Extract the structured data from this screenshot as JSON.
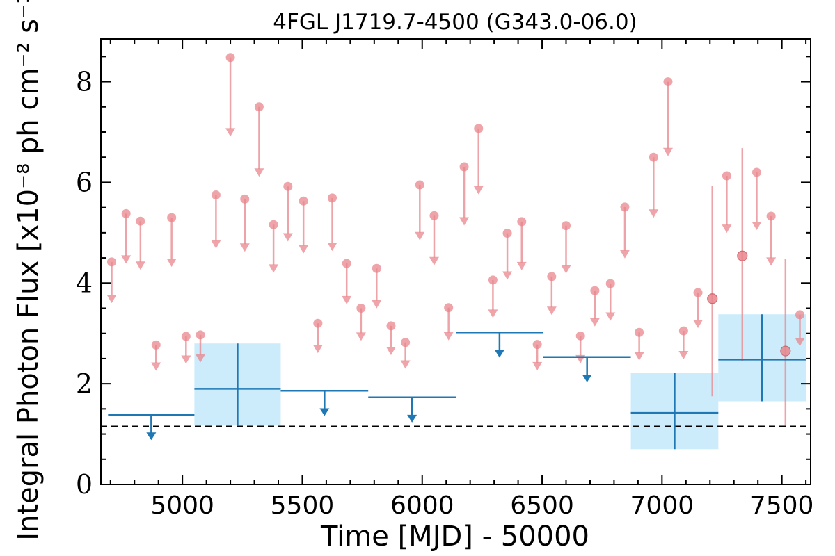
{
  "chart_data": {
    "type": "scatter",
    "title": "4FGL J1719.7-4500 (G343.0-06.0)",
    "xlabel": "Time [MJD] - 50000",
    "ylabel": "Integral Photon Flux [x10⁻⁸ ph cm⁻² s⁻¹]",
    "xlim": [
      4660,
      7620
    ],
    "ylim": [
      0,
      8.85
    ],
    "xticks": [
      5000,
      5500,
      6000,
      6500,
      7000,
      7500
    ],
    "yticks": [
      0,
      2,
      4,
      6,
      8
    ],
    "baseline": 1.15,
    "colors": {
      "fine": "#e8868c",
      "coarse": "#1f77b4",
      "band": "#ccecfc"
    },
    "fine_upper_limits": [
      {
        "x": 4705,
        "y": 4.42
      },
      {
        "x": 4765,
        "y": 5.38
      },
      {
        "x": 4825,
        "y": 5.23
      },
      {
        "x": 4890,
        "y": 2.77
      },
      {
        "x": 4955,
        "y": 5.3
      },
      {
        "x": 5015,
        "y": 2.94
      },
      {
        "x": 5075,
        "y": 2.97
      },
      {
        "x": 5140,
        "y": 5.75
      },
      {
        "x": 5200,
        "y": 8.48
      },
      {
        "x": 5260,
        "y": 5.67
      },
      {
        "x": 5320,
        "y": 7.5
      },
      {
        "x": 5380,
        "y": 5.16
      },
      {
        "x": 5440,
        "y": 5.92
      },
      {
        "x": 5505,
        "y": 5.63
      },
      {
        "x": 5565,
        "y": 3.2
      },
      {
        "x": 5625,
        "y": 5.69
      },
      {
        "x": 5685,
        "y": 4.39
      },
      {
        "x": 5745,
        "y": 3.5
      },
      {
        "x": 5810,
        "y": 4.29
      },
      {
        "x": 5870,
        "y": 3.15
      },
      {
        "x": 5930,
        "y": 2.82
      },
      {
        "x": 5990,
        "y": 5.95
      },
      {
        "x": 6050,
        "y": 5.34
      },
      {
        "x": 6110,
        "y": 3.51
      },
      {
        "x": 6175,
        "y": 6.31
      },
      {
        "x": 6235,
        "y": 7.07
      },
      {
        "x": 6295,
        "y": 4.06
      },
      {
        "x": 6355,
        "y": 4.99
      },
      {
        "x": 6415,
        "y": 5.22
      },
      {
        "x": 6480,
        "y": 2.78
      },
      {
        "x": 6540,
        "y": 4.13
      },
      {
        "x": 6600,
        "y": 5.14
      },
      {
        "x": 6660,
        "y": 2.95
      },
      {
        "x": 6720,
        "y": 3.85
      },
      {
        "x": 6785,
        "y": 3.99
      },
      {
        "x": 6845,
        "y": 5.51
      },
      {
        "x": 6905,
        "y": 3.02
      },
      {
        "x": 6965,
        "y": 6.5
      },
      {
        "x": 7025,
        "y": 8.0
      },
      {
        "x": 7090,
        "y": 3.05
      },
      {
        "x": 7150,
        "y": 3.81
      },
      {
        "x": 7270,
        "y": 6.13
      },
      {
        "x": 7395,
        "y": 6.2
      },
      {
        "x": 7455,
        "y": 5.33
      },
      {
        "x": 7575,
        "y": 3.37
      }
    ],
    "fine_detections": [
      {
        "x": 7210,
        "y": 3.69,
        "ylow": 1.75,
        "yhigh": 5.93
      },
      {
        "x": 7335,
        "y": 4.54,
        "ylow": 2.45,
        "yhigh": 6.68
      },
      {
        "x": 7515,
        "y": 2.65,
        "ylow": 1.17,
        "yhigh": 4.48
      }
    ],
    "coarse_upper_limits": [
      {
        "x0": 4690,
        "x1": 5050,
        "y": 1.38
      },
      {
        "x0": 5410,
        "x1": 5775,
        "y": 1.86
      },
      {
        "x0": 5775,
        "x1": 6140,
        "y": 1.73
      },
      {
        "x0": 6140,
        "x1": 6505,
        "y": 3.02
      },
      {
        "x0": 6505,
        "x1": 6870,
        "y": 2.53
      }
    ],
    "coarse_detections": [
      {
        "x0": 5050,
        "x1": 5410,
        "y": 1.9,
        "ylow": 1.17,
        "yhigh": 2.8
      },
      {
        "x0": 6870,
        "x1": 7235,
        "y": 1.42,
        "ylow": 0.7,
        "yhigh": 2.21
      },
      {
        "x0": 7235,
        "x1": 7600,
        "y": 2.48,
        "ylow": 1.65,
        "yhigh": 3.38
      }
    ]
  }
}
